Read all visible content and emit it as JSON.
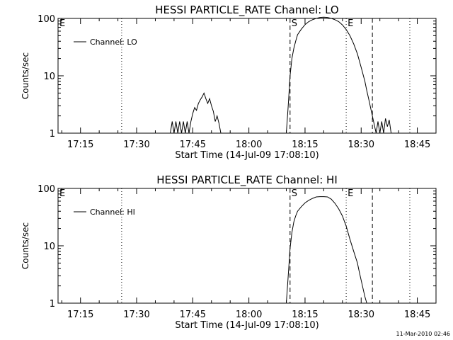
{
  "chart_data": [
    {
      "type": "line",
      "title": "HESSI PARTICLE_RATE Channel: LO",
      "xlabel": "Start Time (14-Jul-09 17:08:10)",
      "ylabel": "Counts/sec",
      "yscale": "log",
      "ylim": [
        1,
        100
      ],
      "xlim": [
        "17:09",
        "18:50"
      ],
      "x_ticks": [
        "17:15",
        "17:30",
        "17:45",
        "18:00",
        "18:15",
        "18:30",
        "18:45"
      ],
      "y_ticks": [
        "1",
        "10",
        "100"
      ],
      "legend": {
        "label": "Channel: LO",
        "placement": "top-left"
      },
      "markers": [
        {
          "label": "E",
          "x": "17:09",
          "style": "label-only"
        },
        {
          "label": "",
          "x": "17:26",
          "style": "dotted"
        },
        {
          "label": "S",
          "x": "18:11",
          "style": "dashed"
        },
        {
          "label": "E",
          "x": "18:26",
          "style": "dotted"
        },
        {
          "label": "",
          "x": "18:33",
          "style": "dashed"
        },
        {
          "label": "",
          "x": "18:43",
          "style": "dotted"
        }
      ],
      "series": [
        {
          "x": [
            "17:39",
            "17:39.5",
            "17:40",
            "17:40.5",
            "17:41",
            "17:41.5",
            "17:42",
            "17:42.5",
            "17:43",
            "17:43.5",
            "17:44",
            "17:44.5",
            "17:45",
            "17:45.5",
            "17:46",
            "17:46.5",
            "17:47",
            "17:47.5",
            "17:48",
            "17:48.5",
            "17:49",
            "17:49.5",
            "17:50",
            "17:50.5",
            "17:51",
            "17:51.5",
            "17:52",
            "17:52.5",
            "17:53"
          ],
          "y": [
            1,
            1.6,
            1,
            1.6,
            1,
            1.6,
            1,
            1.6,
            1,
            1.6,
            1,
            1.6,
            2.2,
            2.8,
            2.5,
            3.3,
            3.8,
            4.3,
            5,
            4,
            3.3,
            4,
            3,
            2.4,
            1.6,
            2,
            1.5,
            1,
            1
          ]
        },
        {
          "x": [
            "18:10",
            "18:10.5",
            "18:11",
            "18:11.5",
            "18:12",
            "18:12.5",
            "18:13",
            "18:14",
            "18:15",
            "18:16",
            "18:17",
            "18:18",
            "18:19",
            "18:20",
            "18:21",
            "18:22",
            "18:23",
            "18:24",
            "18:25",
            "18:26",
            "18:27",
            "18:28",
            "18:29",
            "18:30",
            "18:31",
            "18:31.5",
            "18:32",
            "18:32.5",
            "18:33",
            "18:33.5",
            "18:34",
            "18:34.5",
            "18:35",
            "18:35.5",
            "18:36",
            "18:36.5",
            "18:37",
            "18:37.5",
            "18:38"
          ],
          "y": [
            1,
            3,
            10,
            20,
            30,
            40,
            52,
            65,
            78,
            88,
            95,
            100,
            104,
            105,
            104,
            100,
            95,
            88,
            77,
            64,
            50,
            36,
            24,
            14,
            8,
            5.5,
            4,
            2.8,
            2,
            1.4,
            1,
            1.6,
            1,
            1.6,
            1,
            1.8,
            1.3,
            1.7,
            1
          ]
        }
      ]
    },
    {
      "type": "line",
      "title": "HESSI PARTICLE_RATE Channel: HI",
      "xlabel": "Start Time (14-Jul-09 17:08:10)",
      "ylabel": "Counts/sec",
      "yscale": "log",
      "ylim": [
        1,
        100
      ],
      "xlim": [
        "17:09",
        "18:50"
      ],
      "x_ticks": [
        "17:15",
        "17:30",
        "17:45",
        "18:00",
        "18:15",
        "18:30",
        "18:45"
      ],
      "y_ticks": [
        "1",
        "10",
        "100"
      ],
      "legend": {
        "label": "Channel: HI",
        "placement": "top-left"
      },
      "markers": [
        {
          "label": "E",
          "x": "17:09",
          "style": "label-only"
        },
        {
          "label": "",
          "x": "17:26",
          "style": "dotted"
        },
        {
          "label": "S",
          "x": "18:11",
          "style": "dashed"
        },
        {
          "label": "E",
          "x": "18:26",
          "style": "dotted"
        },
        {
          "label": "",
          "x": "18:33",
          "style": "dashed"
        },
        {
          "label": "",
          "x": "18:43",
          "style": "dotted"
        }
      ],
      "series": [
        {
          "x": [
            "18:10",
            "18:10.5",
            "18:11",
            "18:11.5",
            "18:12",
            "18:12.5",
            "18:13",
            "18:14",
            "18:15",
            "18:16",
            "18:17",
            "18:18",
            "18:19",
            "18:20",
            "18:21",
            "18:22",
            "18:23",
            "18:24",
            "18:25",
            "18:26",
            "18:27",
            "18:28",
            "18:29",
            "18:29.5",
            "18:30",
            "18:30.5",
            "18:31",
            "18:31.5"
          ],
          "y": [
            1,
            3,
            9,
            17,
            26,
            33,
            40,
            48,
            56,
            62,
            67,
            71,
            72,
            72,
            71,
            65,
            55,
            44,
            33,
            22,
            13,
            8,
            5,
            3.5,
            2.5,
            1.8,
            1.3,
            1
          ]
        }
      ]
    }
  ],
  "timestamp": "11-Mar-2010 02:46"
}
